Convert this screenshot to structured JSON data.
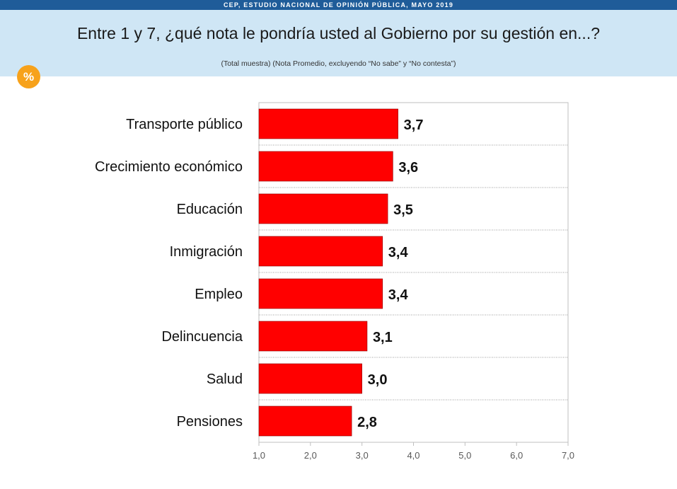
{
  "header": {
    "source": "CEP, ESTUDIO NACIONAL DE OPINIÓN PÚBLICA, MAYO 2019",
    "title": "Entre 1 y 7, ¿qué nota le pondría usted al Gobierno por su gestión en...?",
    "subtitle": "(Total muestra) (Nota Promedio, excluyendo “No sabe” y “No contesta”)",
    "badge": "%"
  },
  "colors": {
    "bar": "#ff0000",
    "header_bg": "#cfe6f5",
    "topbar_bg": "#1f5c99",
    "badge_bg": "#f7a21b"
  },
  "chart_data": {
    "type": "bar",
    "orientation": "horizontal",
    "categories": [
      "Transporte público",
      "Crecimiento económico",
      "Educación",
      "Inmigración",
      "Empleo",
      "Delincuencia",
      "Salud",
      "Pensiones"
    ],
    "values": [
      3.7,
      3.6,
      3.5,
      3.4,
      3.4,
      3.1,
      3.0,
      2.8
    ],
    "value_labels": [
      "3,7",
      "3,6",
      "3,5",
      "3,4",
      "3,4",
      "3,1",
      "3,0",
      "2,8"
    ],
    "xlim": [
      1,
      7
    ],
    "xticks": [
      1,
      2,
      3,
      4,
      5,
      6,
      7
    ],
    "xtick_labels": [
      "1,0",
      "2,0",
      "3,0",
      "4,0",
      "5,0",
      "6,0",
      "7,0"
    ],
    "grid": "horizontal dotted separators",
    "legend": "none"
  }
}
